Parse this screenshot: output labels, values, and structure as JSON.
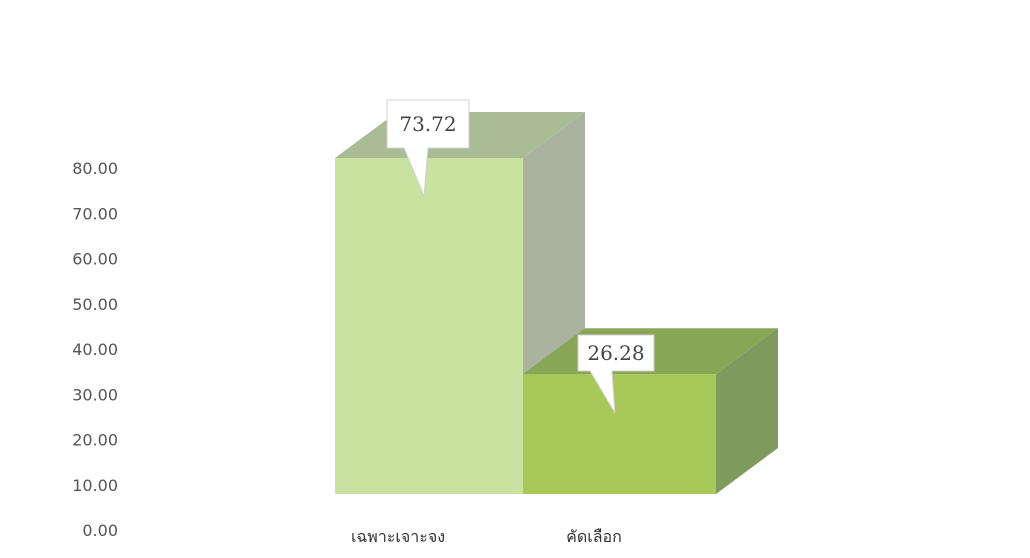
{
  "chart_data": {
    "type": "bar",
    "categories": [
      "เฉพาะเจาะจง",
      "คัดเลือก"
    ],
    "values": [
      73.72,
      26.28
    ],
    "data_labels": [
      "73.72",
      "26.28"
    ],
    "title": "",
    "xlabel": "",
    "ylabel": "",
    "ylim": [
      0,
      80
    ],
    "y_ticks": [
      "0.00",
      "10.00",
      "20.00",
      "30.00",
      "40.00",
      "50.00",
      "60.00",
      "70.00",
      "80.00"
    ],
    "grid": false,
    "legend": "none",
    "style": "3d-column",
    "colors": {
      "bar_front": [
        "#c9e2a0",
        "#a8c85a"
      ],
      "bar_top": [
        "#a9bc96",
        "#88a656"
      ],
      "bar_side": [
        "#a9b39f",
        "#7e9a5c"
      ],
      "callout_border": "#d0d0d0",
      "callout_fill": "#ffffff"
    }
  }
}
